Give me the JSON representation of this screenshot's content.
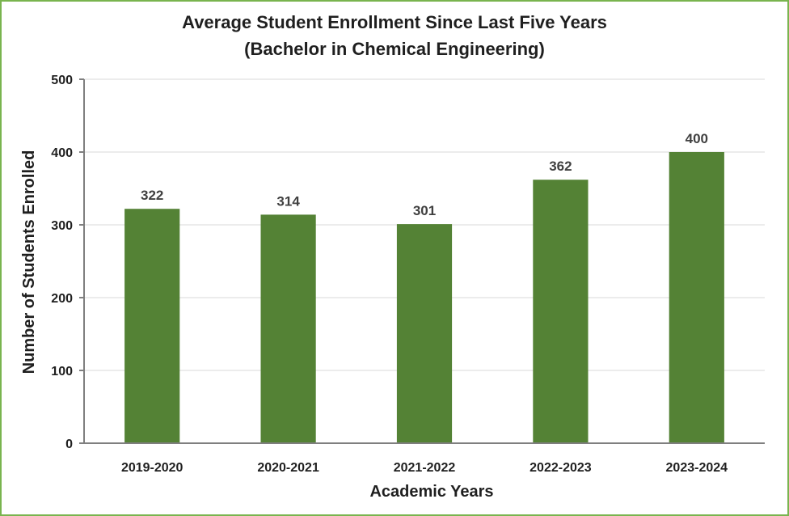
{
  "chart_data": {
    "type": "bar",
    "title": [
      "Average Student Enrollment Since Last Five Years",
      "(Bachelor in Chemical Engineering)"
    ],
    "xlabel": "Academic Years",
    "ylabel": "Number of Students Enrolled",
    "categories": [
      "2019-2020",
      "2020-2021",
      "2021-2022",
      "2022-2023",
      "2023-2024"
    ],
    "values": [
      322,
      314,
      301,
      362,
      400
    ],
    "ylim": [
      0,
      500
    ],
    "yticks": [
      0,
      100,
      200,
      300,
      400,
      500
    ],
    "grid": true,
    "legend": "none",
    "data_labels": true,
    "bar_color": "#548235",
    "border_color": "#79b44f"
  }
}
